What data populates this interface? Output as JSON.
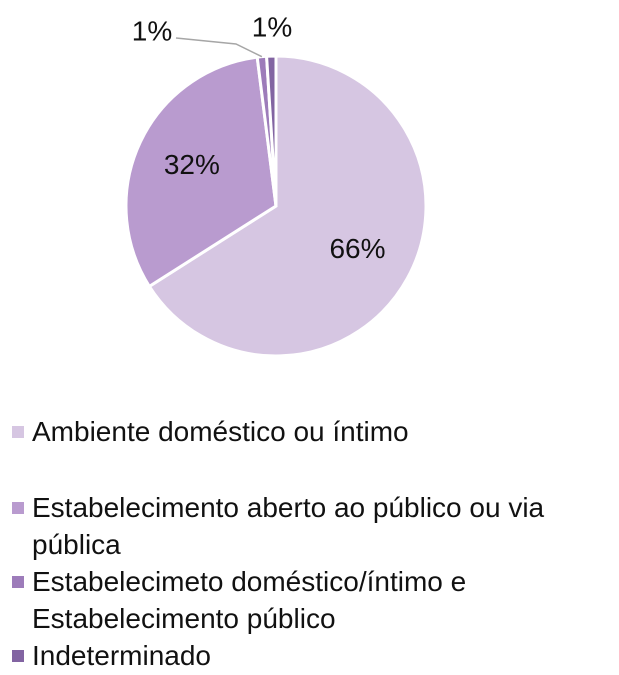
{
  "chart_data": {
    "type": "pie",
    "categories": [
      "Ambiente doméstico ou íntimo",
      "Estabelecimento aberto ao público ou via pública",
      "Estabelecimeto doméstico/íntimo e Estabelecimento público",
      "Indeterminado"
    ],
    "values": [
      66,
      32,
      1,
      1
    ],
    "value_labels": [
      "66%",
      "32%",
      "1%",
      "1%"
    ],
    "colors": [
      "#d6c6e2",
      "#b99bcf",
      "#9d7cba",
      "#8264a2"
    ],
    "legend": "bottom"
  }
}
